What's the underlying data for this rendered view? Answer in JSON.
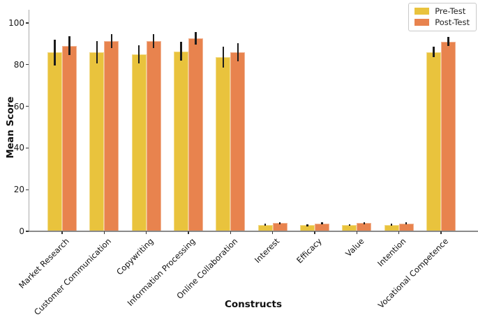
{
  "chart_data": {
    "type": "bar",
    "title": "",
    "xlabel": "Constructs",
    "ylabel": "Mean Score",
    "ylim": [
      0,
      105
    ],
    "yticks": [
      0,
      20,
      40,
      60,
      80,
      100
    ],
    "grid": false,
    "legend_position": "upper-right",
    "error_bar_color": "#1c1c1c",
    "categories": [
      "Market Research",
      "Customer Communication",
      "Copywriting",
      "Information Processing",
      "Online Collaboration",
      "Interest",
      "Efficacy",
      "Value",
      "Intention",
      "Vocational Competence"
    ],
    "series": [
      {
        "name": "Pre-Test",
        "color": "#E9C33D",
        "values": [
          85.8,
          85.9,
          84.9,
          86.4,
          83.7,
          3.1,
          3.0,
          3.0,
          3.1,
          86.0
        ],
        "errors": [
          6.2,
          5.3,
          4.4,
          4.5,
          5.0,
          0.5,
          0.5,
          0.4,
          0.5,
          2.5
        ]
      },
      {
        "name": "Post-Test",
        "color": "#E8834E",
        "values": [
          89.0,
          91.3,
          91.2,
          92.7,
          86.0,
          3.9,
          3.8,
          3.9,
          3.8,
          91.0
        ],
        "errors": [
          4.5,
          3.5,
          3.4,
          3.0,
          4.4,
          0.4,
          0.4,
          0.4,
          0.4,
          2.2
        ]
      }
    ]
  }
}
